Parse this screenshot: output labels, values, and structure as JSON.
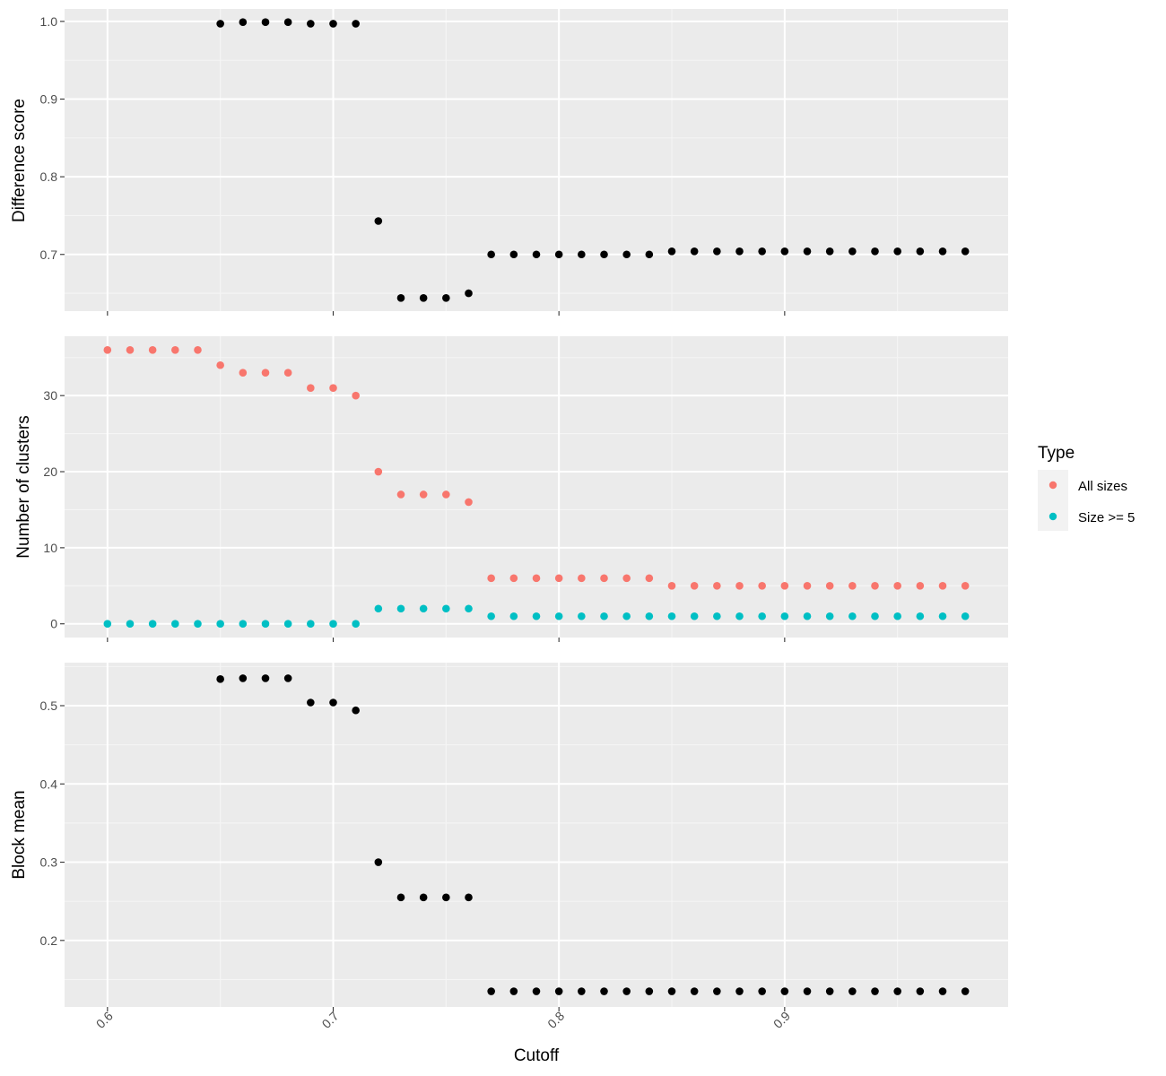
{
  "chart_data": {
    "type": "scatter",
    "x_label": "Cutoff",
    "x_range": [
      0.581,
      0.999
    ],
    "x_ticks": [
      0.6,
      0.7,
      0.8,
      0.9
    ],
    "x_tick_labels": [
      "0.6",
      "0.7",
      "0.8",
      "0.9"
    ],
    "x": [
      0.6,
      0.61,
      0.62,
      0.63,
      0.64,
      0.65,
      0.66,
      0.67,
      0.68,
      0.69,
      0.7,
      0.71,
      0.72,
      0.73,
      0.74,
      0.75,
      0.76,
      0.77,
      0.78,
      0.79,
      0.8,
      0.81,
      0.82,
      0.83,
      0.84,
      0.85,
      0.86,
      0.87,
      0.88,
      0.89,
      0.9,
      0.91,
      0.92,
      0.93,
      0.94,
      0.95,
      0.96,
      0.97,
      0.98
    ],
    "grid": true,
    "legend": {
      "title": "Type",
      "placement": "right",
      "entries": [
        {
          "label": "All sizes",
          "color": "#F8766D"
        },
        {
          "label": "Size >= 5",
          "color": "#00BFC4"
        }
      ]
    },
    "panels": [
      {
        "ylabel": "Difference score",
        "y_range": [
          0.627,
          1.016
        ],
        "y_ticks": [
          0.7,
          0.8,
          0.9,
          1.0
        ],
        "y_tick_labels": [
          "0.7",
          "0.8",
          "0.9",
          "1.0"
        ],
        "series": [
          {
            "color": "#000000",
            "values": [
              null,
              null,
              null,
              null,
              null,
              0.997,
              0.999,
              0.999,
              0.999,
              0.997,
              0.997,
              0.997,
              0.743,
              0.644,
              0.644,
              0.644,
              0.65,
              0.7,
              0.7,
              0.7,
              0.7,
              0.7,
              0.7,
              0.7,
              0.7,
              0.704,
              0.704,
              0.704,
              0.704,
              0.704,
              0.704,
              0.704,
              0.704,
              0.704,
              0.704,
              0.704,
              0.704,
              0.704,
              0.704
            ]
          }
        ]
      },
      {
        "ylabel": "Number of clusters",
        "y_range": [
          -1.8,
          37.8
        ],
        "y_ticks": [
          0,
          10,
          20,
          30
        ],
        "y_tick_labels": [
          "0",
          "10",
          "20",
          "30"
        ],
        "series": [
          {
            "name": "All sizes",
            "color": "#F8766D",
            "values": [
              36,
              36,
              36,
              36,
              36,
              34,
              33,
              33,
              33,
              31,
              31,
              30,
              20,
              17,
              17,
              17,
              16,
              6,
              6,
              6,
              6,
              6,
              6,
              6,
              6,
              5,
              5,
              5,
              5,
              5,
              5,
              5,
              5,
              5,
              5,
              5,
              5,
              5,
              5
            ]
          },
          {
            "name": "Size >= 5",
            "color": "#00BFC4",
            "values": [
              0,
              0,
              0,
              0,
              0,
              0,
              0,
              0,
              0,
              0,
              0,
              0,
              2,
              2,
              2,
              2,
              2,
              1,
              1,
              1,
              1,
              1,
              1,
              1,
              1,
              1,
              1,
              1,
              1,
              1,
              1,
              1,
              1,
              1,
              1,
              1,
              1,
              1,
              1
            ]
          }
        ]
      },
      {
        "ylabel": "Block mean",
        "y_range": [
          0.115,
          0.555
        ],
        "y_ticks": [
          0.2,
          0.3,
          0.4,
          0.5
        ],
        "y_tick_labels": [
          "0.2",
          "0.3",
          "0.4",
          "0.5"
        ],
        "series": [
          {
            "color": "#000000",
            "values": [
              null,
              null,
              null,
              null,
              null,
              0.534,
              0.535,
              0.535,
              0.535,
              0.504,
              0.504,
              0.494,
              0.3,
              0.255,
              0.255,
              0.255,
              0.255,
              0.135,
              0.135,
              0.135,
              0.135,
              0.135,
              0.135,
              0.135,
              0.135,
              0.135,
              0.135,
              0.135,
              0.135,
              0.135,
              0.135,
              0.135,
              0.135,
              0.135,
              0.135,
              0.135,
              0.135,
              0.135,
              0.135
            ]
          }
        ]
      }
    ]
  }
}
